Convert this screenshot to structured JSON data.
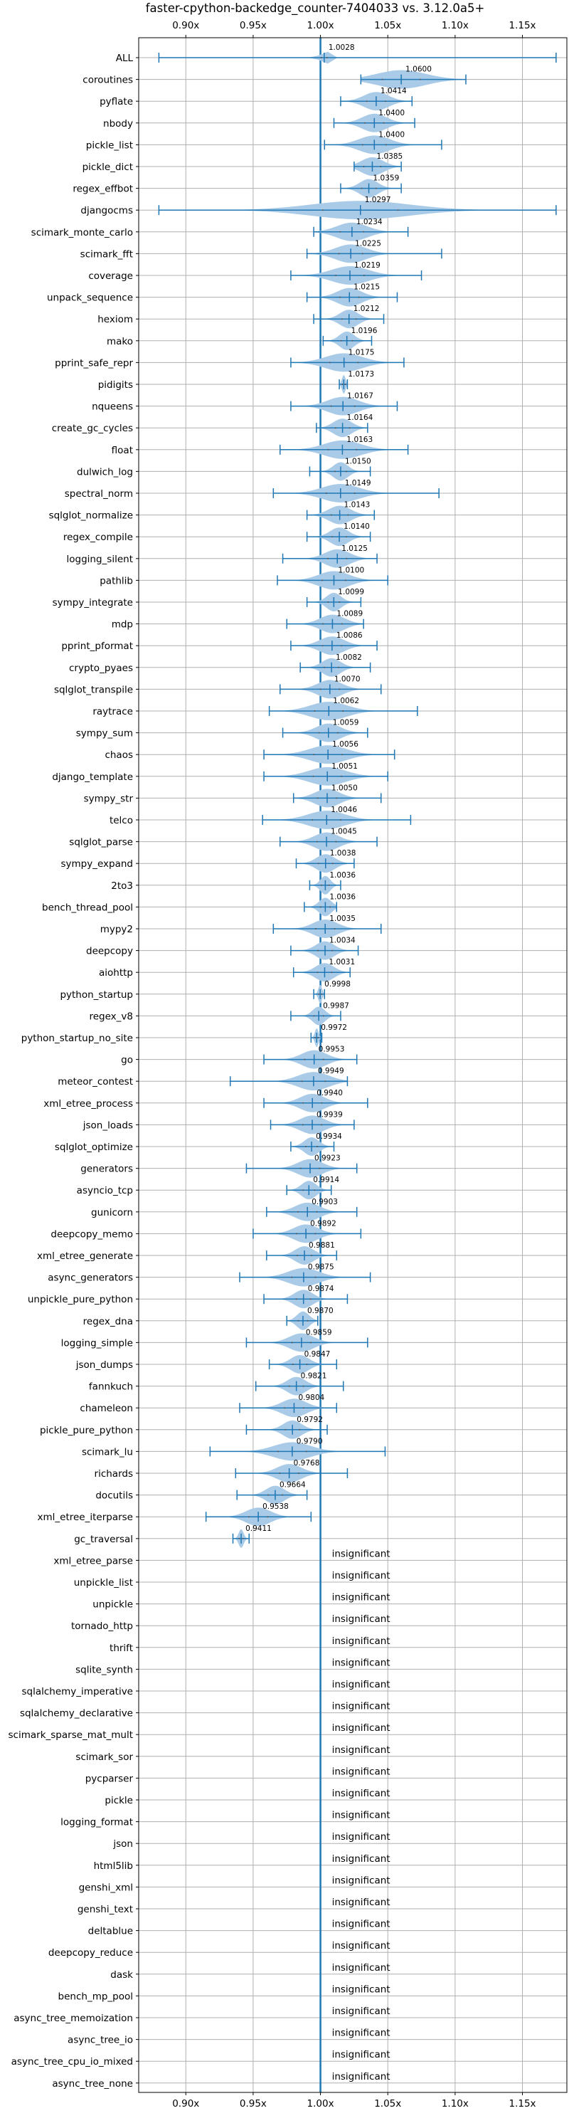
{
  "chart_data": {
    "type": "violin",
    "title": "faster-cpython-backedge_counter-7404033 vs. 3.12.0a5+",
    "xlabel": "",
    "ylabel": "",
    "xlim": [
      0.865,
      1.183
    ],
    "xticks": [
      0.9,
      0.95,
      1.0,
      1.05,
      1.1,
      1.15
    ],
    "xtick_labels": [
      "0.90x",
      "0.95x",
      "1.00x",
      "1.05x",
      "1.10x",
      "1.15x"
    ],
    "reference_line": 1.0,
    "grid": true,
    "colors": {
      "violin": "#a9cbe8",
      "line": "#1f77b4",
      "grid": "#b0b0b0"
    },
    "benchmarks": [
      {
        "name": "ALL",
        "median": 1.0028,
        "lo": 0.88,
        "hi": 1.175,
        "spread": 0.006
      },
      {
        "name": "coroutines",
        "median": 1.06,
        "lo": 1.03,
        "hi": 1.108,
        "spread": 0.04
      },
      {
        "name": "pyflate",
        "median": 1.0414,
        "lo": 1.015,
        "hi": 1.068,
        "spread": 0.02
      },
      {
        "name": "nbody",
        "median": 1.04,
        "lo": 1.01,
        "hi": 1.07,
        "spread": 0.02
      },
      {
        "name": "pickle_list",
        "median": 1.04,
        "lo": 1.003,
        "hi": 1.09,
        "spread": 0.025
      },
      {
        "name": "pickle_dict",
        "median": 1.0385,
        "lo": 1.025,
        "hi": 1.06,
        "spread": 0.018
      },
      {
        "name": "regex_effbot",
        "median": 1.0359,
        "lo": 1.015,
        "hi": 1.06,
        "spread": 0.015
      },
      {
        "name": "djangocms",
        "median": 1.0297,
        "lo": 0.88,
        "hi": 1.175,
        "spread": 0.08
      },
      {
        "name": "scimark_monte_carlo",
        "median": 1.0234,
        "lo": 0.995,
        "hi": 1.065,
        "spread": 0.025
      },
      {
        "name": "scimark_fft",
        "median": 1.0225,
        "lo": 0.99,
        "hi": 1.09,
        "spread": 0.025
      },
      {
        "name": "coverage",
        "median": 1.0219,
        "lo": 0.978,
        "hi": 1.075,
        "spread": 0.03
      },
      {
        "name": "unpack_sequence",
        "median": 1.0215,
        "lo": 0.99,
        "hi": 1.057,
        "spread": 0.02
      },
      {
        "name": "hexiom",
        "median": 1.0212,
        "lo": 0.995,
        "hi": 1.047,
        "spread": 0.015
      },
      {
        "name": "mako",
        "median": 1.0196,
        "lo": 1.002,
        "hi": 1.038,
        "spread": 0.012
      },
      {
        "name": "pprint_safe_repr",
        "median": 1.0175,
        "lo": 0.978,
        "hi": 1.062,
        "spread": 0.03
      },
      {
        "name": "pidigits",
        "median": 1.0173,
        "lo": 1.014,
        "hi": 1.02,
        "spread": 0.003
      },
      {
        "name": "nqueens",
        "median": 1.0167,
        "lo": 0.978,
        "hi": 1.057,
        "spread": 0.025
      },
      {
        "name": "create_gc_cycles",
        "median": 1.0164,
        "lo": 0.997,
        "hi": 1.035,
        "spread": 0.015
      },
      {
        "name": "float",
        "median": 1.0163,
        "lo": 0.97,
        "hi": 1.065,
        "spread": 0.03
      },
      {
        "name": "dulwich_log",
        "median": 1.015,
        "lo": 0.992,
        "hi": 1.037,
        "spread": 0.012
      },
      {
        "name": "spectral_norm",
        "median": 1.0149,
        "lo": 0.965,
        "hi": 1.088,
        "spread": 0.03
      },
      {
        "name": "sqlglot_normalize",
        "median": 1.0143,
        "lo": 0.99,
        "hi": 1.04,
        "spread": 0.018
      },
      {
        "name": "regex_compile",
        "median": 1.014,
        "lo": 0.99,
        "hi": 1.037,
        "spread": 0.015
      },
      {
        "name": "logging_silent",
        "median": 1.0125,
        "lo": 0.972,
        "hi": 1.042,
        "spread": 0.02
      },
      {
        "name": "pathlib",
        "median": 1.01,
        "lo": 0.968,
        "hi": 1.05,
        "spread": 0.025
      },
      {
        "name": "sympy_integrate",
        "median": 1.0099,
        "lo": 0.99,
        "hi": 1.03,
        "spread": 0.012
      },
      {
        "name": "mdp",
        "median": 1.0089,
        "lo": 0.975,
        "hi": 1.032,
        "spread": 0.02
      },
      {
        "name": "pprint_pformat",
        "median": 1.0086,
        "lo": 0.978,
        "hi": 1.042,
        "spread": 0.02
      },
      {
        "name": "crypto_pyaes",
        "median": 1.0082,
        "lo": 0.985,
        "hi": 1.037,
        "spread": 0.015
      },
      {
        "name": "sqlglot_transpile",
        "median": 1.007,
        "lo": 0.97,
        "hi": 1.045,
        "spread": 0.02
      },
      {
        "name": "raytrace",
        "median": 1.0062,
        "lo": 0.962,
        "hi": 1.072,
        "spread": 0.03
      },
      {
        "name": "sympy_sum",
        "median": 1.0059,
        "lo": 0.972,
        "hi": 1.035,
        "spread": 0.02
      },
      {
        "name": "chaos",
        "median": 1.0056,
        "lo": 0.958,
        "hi": 1.055,
        "spread": 0.03
      },
      {
        "name": "django_template",
        "median": 1.0051,
        "lo": 0.958,
        "hi": 1.05,
        "spread": 0.03
      },
      {
        "name": "sympy_str",
        "median": 1.005,
        "lo": 0.98,
        "hi": 1.045,
        "spread": 0.02
      },
      {
        "name": "telco",
        "median": 1.0046,
        "lo": 0.957,
        "hi": 1.067,
        "spread": 0.03
      },
      {
        "name": "sqlglot_parse",
        "median": 1.0045,
        "lo": 0.97,
        "hi": 1.042,
        "spread": 0.02
      },
      {
        "name": "sympy_expand",
        "median": 1.0038,
        "lo": 0.982,
        "hi": 1.025,
        "spread": 0.015
      },
      {
        "name": "2to3",
        "median": 1.0036,
        "lo": 0.992,
        "hi": 1.015,
        "spread": 0.008
      },
      {
        "name": "bench_thread_pool",
        "median": 1.0036,
        "lo": 0.988,
        "hi": 1.012,
        "spread": 0.01
      },
      {
        "name": "mypy2",
        "median": 1.0035,
        "lo": 0.965,
        "hi": 1.045,
        "spread": 0.02
      },
      {
        "name": "deepcopy",
        "median": 1.0034,
        "lo": 0.978,
        "hi": 1.028,
        "spread": 0.015
      },
      {
        "name": "aiohttp",
        "median": 1.0031,
        "lo": 0.98,
        "hi": 1.022,
        "spread": 0.015
      },
      {
        "name": "python_startup",
        "median": 0.9998,
        "lo": 0.995,
        "hi": 1.003,
        "spread": 0.003
      },
      {
        "name": "regex_v8",
        "median": 0.9987,
        "lo": 0.978,
        "hi": 1.015,
        "spread": 0.01
      },
      {
        "name": "python_startup_no_site",
        "median": 0.9972,
        "lo": 0.993,
        "hi": 1.001,
        "spread": 0.003
      },
      {
        "name": "go",
        "median": 0.9953,
        "lo": 0.958,
        "hi": 1.027,
        "spread": 0.02
      },
      {
        "name": "meteor_contest",
        "median": 0.9949,
        "lo": 0.933,
        "hi": 1.02,
        "spread": 0.025
      },
      {
        "name": "xml_etree_process",
        "median": 0.994,
        "lo": 0.958,
        "hi": 1.035,
        "spread": 0.02
      },
      {
        "name": "json_loads",
        "median": 0.9939,
        "lo": 0.963,
        "hi": 1.025,
        "spread": 0.02
      },
      {
        "name": "sqlglot_optimize",
        "median": 0.9934,
        "lo": 0.978,
        "hi": 1.01,
        "spread": 0.012
      },
      {
        "name": "generators",
        "median": 0.9923,
        "lo": 0.945,
        "hi": 1.027,
        "spread": 0.02
      },
      {
        "name": "asyncio_tcp",
        "median": 0.9914,
        "lo": 0.975,
        "hi": 1.008,
        "spread": 0.012
      },
      {
        "name": "gunicorn",
        "median": 0.9903,
        "lo": 0.96,
        "hi": 1.027,
        "spread": 0.02
      },
      {
        "name": "deepcopy_memo",
        "median": 0.9892,
        "lo": 0.95,
        "hi": 1.03,
        "spread": 0.02
      },
      {
        "name": "xml_etree_generate",
        "median": 0.9881,
        "lo": 0.96,
        "hi": 1.012,
        "spread": 0.015
      },
      {
        "name": "async_generators",
        "median": 0.9875,
        "lo": 0.94,
        "hi": 1.037,
        "spread": 0.025
      },
      {
        "name": "unpickle_pure_python",
        "median": 0.9874,
        "lo": 0.958,
        "hi": 1.02,
        "spread": 0.015
      },
      {
        "name": "regex_dna",
        "median": 0.987,
        "lo": 0.975,
        "hi": 0.998,
        "spread": 0.01
      },
      {
        "name": "logging_simple",
        "median": 0.9859,
        "lo": 0.945,
        "hi": 1.035,
        "spread": 0.02
      },
      {
        "name": "json_dumps",
        "median": 0.9847,
        "lo": 0.962,
        "hi": 1.012,
        "spread": 0.015
      },
      {
        "name": "fannkuch",
        "median": 0.9821,
        "lo": 0.952,
        "hi": 1.017,
        "spread": 0.015
      },
      {
        "name": "chameleon",
        "median": 0.9804,
        "lo": 0.94,
        "hi": 1.012,
        "spread": 0.02
      },
      {
        "name": "pickle_pure_python",
        "median": 0.9792,
        "lo": 0.945,
        "hi": 1.005,
        "spread": 0.015
      },
      {
        "name": "scimark_lu",
        "median": 0.979,
        "lo": 0.918,
        "hi": 1.048,
        "spread": 0.03
      },
      {
        "name": "richards",
        "median": 0.9768,
        "lo": 0.937,
        "hi": 1.02,
        "spread": 0.02
      },
      {
        "name": "docutils",
        "median": 0.9664,
        "lo": 0.938,
        "hi": 0.99,
        "spread": 0.015
      },
      {
        "name": "xml_etree_iterparse",
        "median": 0.9538,
        "lo": 0.915,
        "hi": 0.993,
        "spread": 0.02
      },
      {
        "name": "gc_traversal",
        "median": 0.9411,
        "lo": 0.935,
        "hi": 0.947,
        "spread": 0.004
      }
    ],
    "insignificant_label": "insignificant",
    "insignificant": [
      "xml_etree_parse",
      "unpickle_list",
      "unpickle",
      "tornado_http",
      "thrift",
      "sqlite_synth",
      "sqlalchemy_imperative",
      "sqlalchemy_declarative",
      "scimark_sparse_mat_mult",
      "scimark_sor",
      "pycparser",
      "pickle",
      "logging_format",
      "json",
      "html5lib",
      "genshi_xml",
      "genshi_text",
      "deltablue",
      "deepcopy_reduce",
      "dask",
      "bench_mp_pool",
      "async_tree_memoization",
      "async_tree_io",
      "async_tree_cpu_io_mixed",
      "async_tree_none"
    ]
  }
}
